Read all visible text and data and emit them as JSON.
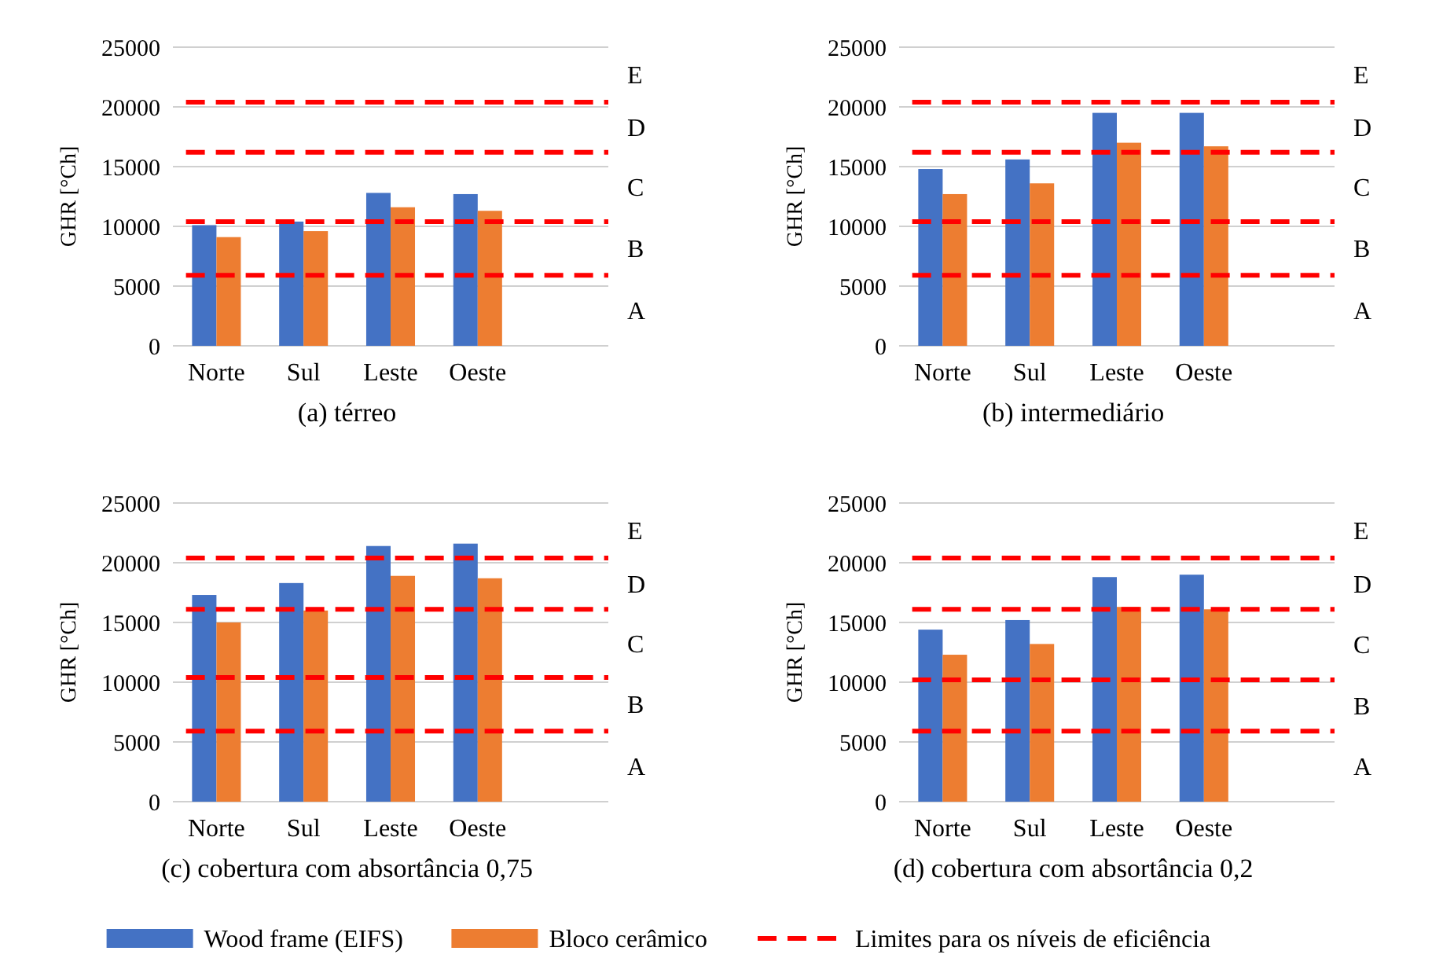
{
  "chart_data": [
    {
      "type": "bar",
      "title": "(a) térreo",
      "ylabel": "GHR [°Ch]",
      "categories": [
        "Norte",
        "Sul",
        "Leste",
        "Oeste"
      ],
      "ylim": [
        0,
        25000
      ],
      "yticks": [
        0,
        5000,
        10000,
        15000,
        20000,
        25000
      ],
      "grid": "y",
      "legend": "bottom",
      "series": [
        {
          "name": "Wood frame (EIFS)",
          "color": "#4472c4",
          "values": [
            10100,
            10400,
            12800,
            12700
          ]
        },
        {
          "name": "Bloco cerâmico",
          "color": "#ed7d31",
          "values": [
            9100,
            9600,
            11600,
            11300
          ]
        }
      ],
      "ref_lines": [
        {
          "axis": "y",
          "value": 5900,
          "color": "#ff0000",
          "line_style": "dashed",
          "label": "Limites para os níveis de eficiência"
        },
        {
          "axis": "y",
          "value": 10400,
          "color": "#ff0000",
          "line_style": "dashed"
        },
        {
          "axis": "y",
          "value": 16200,
          "color": "#ff0000",
          "line_style": "dashed"
        },
        {
          "axis": "y",
          "value": 20400,
          "color": "#ff0000",
          "line_style": "dashed"
        }
      ],
      "annotations": [
        "A",
        "B",
        "C",
        "D",
        "E"
      ]
    },
    {
      "type": "bar",
      "title": "(b) intermediário",
      "ylabel": "GHR [°Ch]",
      "categories": [
        "Norte",
        "Sul",
        "Leste",
        "Oeste"
      ],
      "ylim": [
        0,
        25000
      ],
      "yticks": [
        0,
        5000,
        10000,
        15000,
        20000,
        25000
      ],
      "grid": "y",
      "series": [
        {
          "color": "#4472c4",
          "values": [
            14800,
            15600,
            19500,
            19500
          ]
        },
        {
          "color": "#ed7d31",
          "values": [
            12700,
            13600,
            17000,
            16700
          ]
        }
      ],
      "ref_lines": [
        {
          "axis": "y",
          "value": 5900,
          "color": "#ff0000",
          "line_style": "dashed"
        },
        {
          "axis": "y",
          "value": 10400,
          "color": "#ff0000",
          "line_style": "dashed"
        },
        {
          "axis": "y",
          "value": 16200,
          "color": "#ff0000",
          "line_style": "dashed"
        },
        {
          "axis": "y",
          "value": 20400,
          "color": "#ff0000",
          "line_style": "dashed"
        }
      ],
      "annotations": [
        "A",
        "B",
        "C",
        "D",
        "E"
      ]
    },
    {
      "type": "bar",
      "title": "(c) cobertura com absortância 0,75",
      "ylabel": "GHR [°Ch]",
      "categories": [
        "Norte",
        "Sul",
        "Leste",
        "Oeste"
      ],
      "ylim": [
        0,
        25000
      ],
      "yticks": [
        0,
        5000,
        10000,
        15000,
        20000,
        25000
      ],
      "grid": "y",
      "series": [
        {
          "color": "#4472c4",
          "values": [
            17300,
            18300,
            21400,
            21600
          ]
        },
        {
          "color": "#ed7d31",
          "values": [
            15000,
            16000,
            18900,
            18700
          ]
        }
      ],
      "ref_lines": [
        {
          "axis": "y",
          "value": 5900,
          "color": "#ff0000",
          "line_style": "dashed"
        },
        {
          "axis": "y",
          "value": 10400,
          "color": "#ff0000",
          "line_style": "dashed"
        },
        {
          "axis": "y",
          "value": 16100,
          "color": "#ff0000",
          "line_style": "dashed"
        },
        {
          "axis": "y",
          "value": 20400,
          "color": "#ff0000",
          "line_style": "dashed"
        }
      ],
      "annotations": [
        "A",
        "B",
        "C",
        "D",
        "E"
      ]
    },
    {
      "type": "bar",
      "title": "(d) cobertura com absortância 0,2",
      "ylabel": "GHR [°Ch]",
      "categories": [
        "Norte",
        "Sul",
        "Leste",
        "Oeste"
      ],
      "ylim": [
        0,
        25000
      ],
      "yticks": [
        0,
        5000,
        10000,
        15000,
        20000,
        25000
      ],
      "grid": "y",
      "series": [
        {
          "color": "#4472c4",
          "values": [
            14400,
            15200,
            18800,
            19000
          ]
        },
        {
          "color": "#ed7d31",
          "values": [
            12300,
            13200,
            16300,
            16100
          ]
        }
      ],
      "ref_lines": [
        {
          "axis": "y",
          "value": 5900,
          "color": "#ff0000",
          "line_style": "dashed"
        },
        {
          "axis": "y",
          "value": 10200,
          "color": "#ff0000",
          "line_style": "dashed"
        },
        {
          "axis": "y",
          "value": 16100,
          "color": "#ff0000",
          "line_style": "dashed"
        },
        {
          "axis": "y",
          "value": 20400,
          "color": "#ff0000",
          "line_style": "dashed"
        }
      ],
      "annotations": [
        "A",
        "B",
        "C",
        "D",
        "E"
      ]
    }
  ]
}
